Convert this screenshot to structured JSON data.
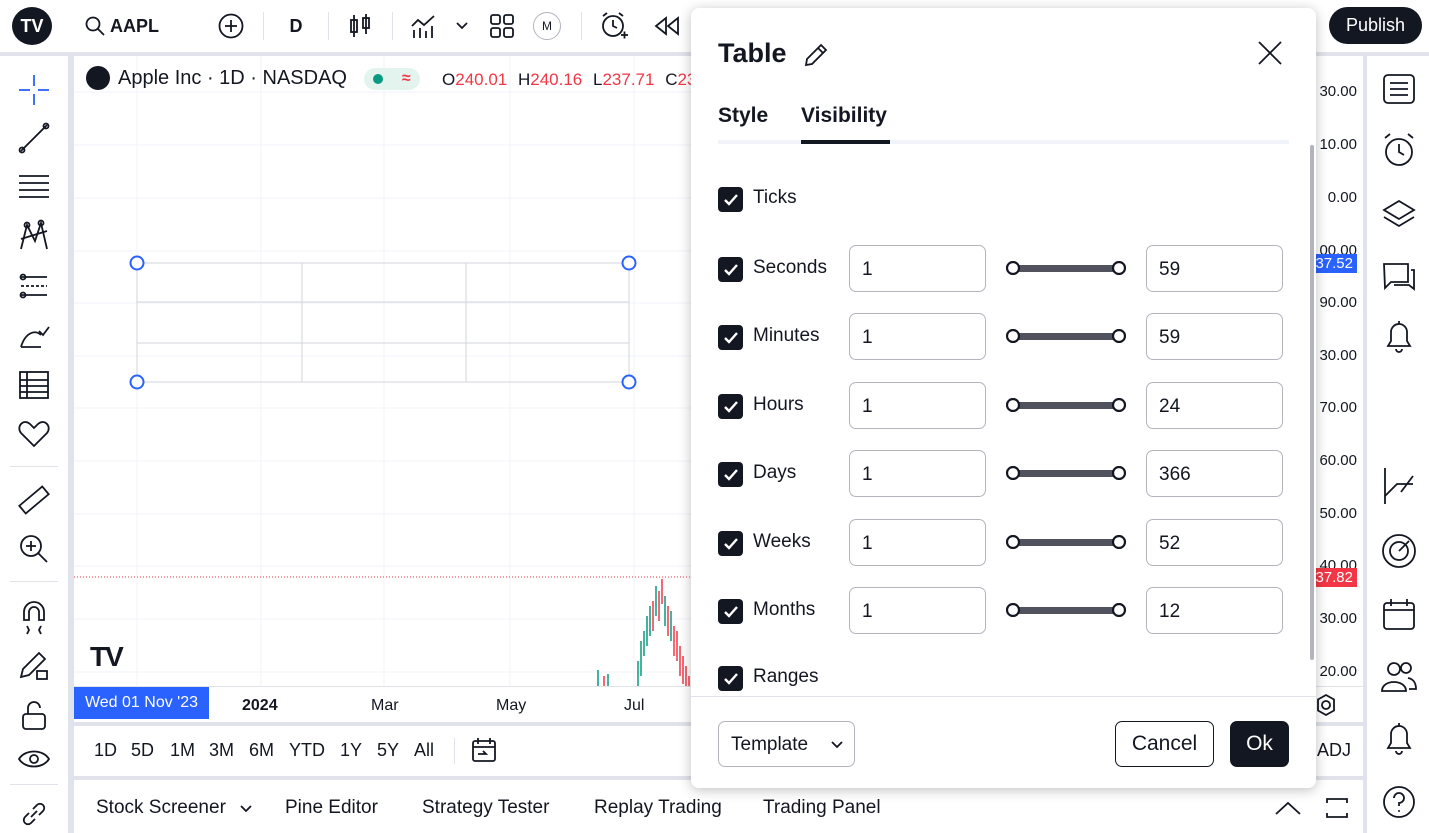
{
  "topbar": {
    "symbol": "AAPL",
    "interval": "D",
    "publish_label": "Publish",
    "replay_badge": "M"
  },
  "chart": {
    "symbol_title": "Apple Inc · 1D · NASDAQ",
    "status_symbol": "≈",
    "ohlc": {
      "o_label": "O",
      "o": "240.01",
      "h_label": "H",
      "h": "240.16",
      "l_label": "L",
      "l": "237.71",
      "c_label": "C",
      "c": "23"
    },
    "price_labels": [
      "30.00",
      "10.00",
      "0.00",
      "00.00",
      "90.00",
      "30.00",
      "70.00",
      "60.00",
      "50.00",
      "40.00",
      "30.00",
      "20.00"
    ],
    "price_tag_blue": "37.52",
    "price_tag_red": "37.82",
    "time_labels": [
      "2024",
      "Mar",
      "May",
      "Jul"
    ],
    "time_cursor": "Wed 01 Nov '23",
    "watermark": "TV",
    "colors": {
      "accent": "#2962ff",
      "down": "#f23645",
      "up": "#089981"
    }
  },
  "range_bar": {
    "ranges": [
      "1D",
      "5D",
      "1M",
      "3M",
      "6M",
      "YTD",
      "1Y",
      "5Y",
      "All"
    ],
    "adj": "ADJ"
  },
  "bottom_bar": {
    "tabs": [
      "Stock Screener",
      "Pine Editor",
      "Strategy Tester",
      "Replay Trading",
      "Trading Panel"
    ]
  },
  "dialog": {
    "title": "Table",
    "tabs": [
      "Style",
      "Visibility"
    ],
    "active_tab": "Visibility",
    "ticks_label": "Ticks",
    "ranges_label": "Ranges",
    "rows": [
      {
        "label": "Seconds",
        "min": "1",
        "max": "59",
        "checked": true
      },
      {
        "label": "Minutes",
        "min": "1",
        "max": "59",
        "checked": true
      },
      {
        "label": "Hours",
        "min": "1",
        "max": "24",
        "checked": true
      },
      {
        "label": "Days",
        "min": "1",
        "max": "366",
        "checked": true
      },
      {
        "label": "Weeks",
        "min": "1",
        "max": "52",
        "checked": true
      },
      {
        "label": "Months",
        "min": "1",
        "max": "12",
        "checked": true
      }
    ],
    "template_label": "Template",
    "cancel_label": "Cancel",
    "ok_label": "Ok"
  }
}
